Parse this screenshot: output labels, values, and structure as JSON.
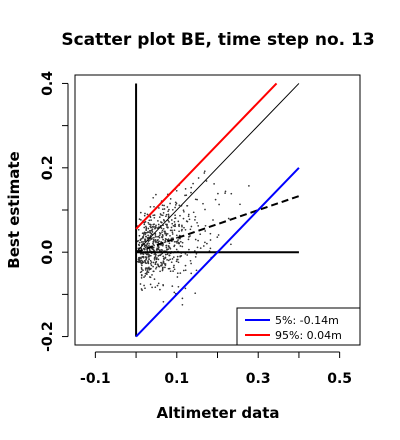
{
  "chart_data": {
    "type": "scatter",
    "title": "Scatter plot BE, time step no. 13",
    "xlabel": "Altimeter data",
    "ylabel": "Best estimate",
    "xlim": [
      -0.15,
      0.55
    ],
    "ylim": [
      -0.22,
      0.42
    ],
    "x_ticks": [
      -0.1,
      0.1,
      0.3,
      0.5
    ],
    "x_tick_labels": [
      "-0.1",
      "0.1",
      "0.3",
      "0.5"
    ],
    "y_ticks": [
      -0.2,
      0.0,
      0.2,
      0.4
    ],
    "y_tick_labels": [
      "-0.2",
      "0.0",
      "0.2",
      "0.4"
    ],
    "grid": false,
    "legend": {
      "placement": "bottom-right",
      "entries": [
        {
          "label": "5%: -0.14m",
          "color": "#0000ff"
        },
        {
          "label": "95%:  0.04m",
          "color": "#ff0000"
        }
      ]
    },
    "lines": [
      {
        "role": "vertical-axis-line",
        "color": "#000000",
        "width": 2,
        "dash": false,
        "points": [
          [
            0,
            -0.2
          ],
          [
            0,
            0.4
          ]
        ]
      },
      {
        "role": "horizontal-zero-line",
        "color": "#000000",
        "width": 2,
        "dash": false,
        "points": [
          [
            0,
            0
          ],
          [
            0.4,
            0
          ]
        ]
      },
      {
        "role": "identity-line",
        "color": "#000000",
        "width": 1,
        "dash": false,
        "points": [
          [
            0,
            0
          ],
          [
            0.4,
            0.4
          ]
        ]
      },
      {
        "role": "regression-line",
        "color": "#000000",
        "width": 2,
        "dash": true,
        "points": [
          [
            0,
            0
          ],
          [
            0.4,
            0.133
          ]
        ]
      },
      {
        "role": "upper-95-line",
        "color": "#ff0000",
        "width": 2,
        "dash": false,
        "points": [
          [
            0,
            0.055
          ],
          [
            0.345,
            0.4
          ]
        ]
      },
      {
        "role": "lower-5-line",
        "color": "#0000ff",
        "width": 2,
        "dash": false,
        "points": [
          [
            0,
            -0.2
          ],
          [
            0.4,
            0.2
          ]
        ]
      }
    ],
    "scatter_color": "#333333"
  }
}
